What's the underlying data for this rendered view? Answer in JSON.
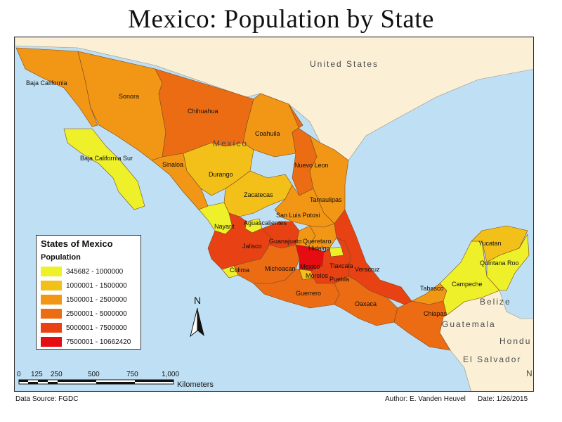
{
  "title": "Mexico: Population by State",
  "map": {
    "water_color": "#bfe0f4",
    "land_color": "#fbf0d6",
    "labels": {
      "united_states": "United States",
      "mexico": "Mexico",
      "belize": "Belize",
      "guatemala": "Guatemala",
      "honduras": "Hondu",
      "el_salvador": "El Salvador",
      "ni": "Ni"
    },
    "states": [
      {
        "name": "Baja California",
        "cls": 3
      },
      {
        "name": "Sonora",
        "cls": 3
      },
      {
        "name": "Chihuahua",
        "cls": 4
      },
      {
        "name": "Coahuila",
        "cls": 3
      },
      {
        "name": "Baja California Sur",
        "cls": 1
      },
      {
        "name": "Sinaloa",
        "cls": 3
      },
      {
        "name": "Durango",
        "cls": 2
      },
      {
        "name": "Nuevo Leon",
        "cls": 4
      },
      {
        "name": "Zacatecas",
        "cls": 2
      },
      {
        "name": "Tamaulipas",
        "cls": 3
      },
      {
        "name": "San Luis Potosi",
        "cls": 3
      },
      {
        "name": "Nayarit",
        "cls": 1
      },
      {
        "name": "Aguascalientes",
        "cls": 1
      },
      {
        "name": "Jalisco",
        "cls": 5
      },
      {
        "name": "Guanajuato",
        "cls": 5
      },
      {
        "name": "Queretaro",
        "cls": 3
      },
      {
        "name": "Hidalgo",
        "cls": 3
      },
      {
        "name": "Colima",
        "cls": 1
      },
      {
        "name": "Michoacan",
        "cls": 4
      },
      {
        "name": "Mexico",
        "cls": 6
      },
      {
        "name": "Tlaxcala",
        "cls": 1
      },
      {
        "name": "Morelos",
        "cls": 2
      },
      {
        "name": "Puebla",
        "cls": 5
      },
      {
        "name": "Veracruz",
        "cls": 5
      },
      {
        "name": "Guerrero",
        "cls": 4
      },
      {
        "name": "Oaxaca",
        "cls": 4
      },
      {
        "name": "Tabasco",
        "cls": 3
      },
      {
        "name": "Chiapas",
        "cls": 4
      },
      {
        "name": "Campeche",
        "cls": 1
      },
      {
        "name": "Yucatan",
        "cls": 2
      },
      {
        "name": "Quintana Roo",
        "cls": 1
      }
    ]
  },
  "legend": {
    "title": "States of Mexico",
    "subtitle": "Population",
    "classes": [
      {
        "label": "345682 - 1000000",
        "color": "#eef02a"
      },
      {
        "label": "1000001 - 1500000",
        "color": "#f2c018"
      },
      {
        "label": "1500001 - 2500000",
        "color": "#f29615"
      },
      {
        "label": "2500001 - 5000000",
        "color": "#ec6c14"
      },
      {
        "label": "5000001 - 7500000",
        "color": "#e84214"
      },
      {
        "label": "7500001 - 10662420",
        "color": "#e50c12"
      }
    ]
  },
  "north_arrow": {
    "label": "N"
  },
  "scale_bar": {
    "ticks": [
      "0",
      "125",
      "250",
      "500",
      "750",
      "1,000"
    ],
    "units": "Kilometers"
  },
  "footer": {
    "data_source": "Data Source:  FGDC",
    "author": "Author: E. Vanden Heuvel",
    "date": "Date: 1/26/2015"
  }
}
